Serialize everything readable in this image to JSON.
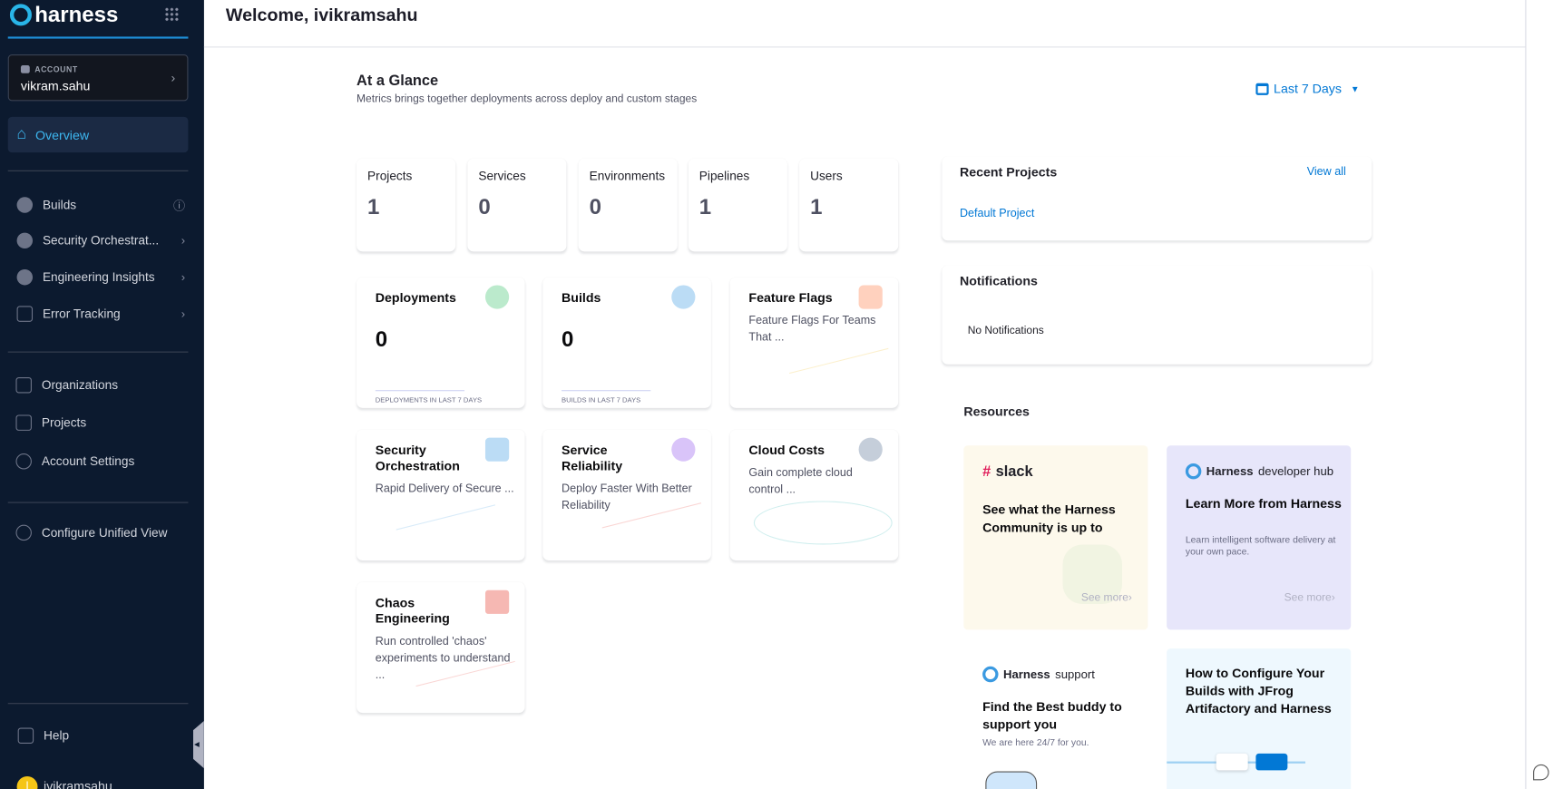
{
  "sidebar": {
    "logo": "harness",
    "account_label": "ACCOUNT",
    "account_name": "vikram.sahu",
    "overview": "Overview",
    "modules": [
      {
        "label": "Builds",
        "icon": "builds-icon",
        "trail": "info-icon"
      },
      {
        "label": "Security Orchestrat...",
        "icon": "shield-icon",
        "trail": "chevron-right-icon"
      },
      {
        "label": "Engineering Insights",
        "icon": "insights-icon",
        "trail": "chevron-right-icon"
      },
      {
        "label": "Error Tracking",
        "icon": "error-tracking-icon",
        "trail": "chevron-right-icon"
      }
    ],
    "admin": [
      {
        "label": "Organizations",
        "icon": "organizations-icon"
      },
      {
        "label": "Projects",
        "icon": "cube-icon"
      },
      {
        "label": "Account Settings",
        "icon": "gear-icon"
      }
    ],
    "configure": "Configure Unified View",
    "help": "Help",
    "user": "ivikramsahu",
    "user_initial": "I"
  },
  "header": {
    "title": "Welcome, ivikramsahu"
  },
  "glance": {
    "title": "At a Glance",
    "subtitle": "Metrics brings together deployments across deploy and custom stages",
    "range": "Last 7 Days"
  },
  "stats": [
    {
      "label": "Projects",
      "value": "1"
    },
    {
      "label": "Services",
      "value": "0"
    },
    {
      "label": "Environments",
      "value": "0"
    },
    {
      "label": "Pipelines",
      "value": "1"
    },
    {
      "label": "Users",
      "value": "1"
    }
  ],
  "modules": {
    "deployments": {
      "title": "Deployments",
      "value": "0",
      "footer": "DEPLOYMENTS IN LAST 7 DAYS"
    },
    "builds": {
      "title": "Builds",
      "value": "0",
      "footer": "BUILDS IN LAST 7 DAYS"
    },
    "ff": {
      "title": "Feature Flags",
      "desc": "Feature Flags For Teams That ..."
    },
    "sto": {
      "title": "Security Orchestration",
      "desc": "Rapid Delivery of Secure ..."
    },
    "srm": {
      "title": "Service Reliability",
      "desc": "Deploy Faster With Better Reliability"
    },
    "ccm": {
      "title": "Cloud Costs",
      "desc": "Gain complete cloud control ..."
    },
    "chaos": {
      "title": "Chaos Engineering",
      "desc": "Run controlled 'chaos' experiments to understand ..."
    }
  },
  "recent": {
    "title": "Recent Projects",
    "view_all": "View all",
    "projects": [
      "Default Project"
    ]
  },
  "notifications": {
    "title": "Notifications",
    "empty": "No Notifications"
  },
  "resources": {
    "title": "Resources",
    "slack": {
      "brand": "slack",
      "heading": "See what the Harness Community is up to",
      "more": "See more›"
    },
    "hub": {
      "brand_bold": "Harness",
      "brand_rest": "developer hub",
      "heading": "Learn More from Harness",
      "sub": "Learn intelligent software delivery at your own pace.",
      "more": "See more›"
    },
    "support": {
      "brand_bold": "Harness",
      "brand_rest": "support",
      "heading": "Find the Best buddy to support you",
      "sub": "We are here 24/7 for you."
    },
    "jfrog": {
      "heading": "How to Configure Your Builds with JFrog Artifactory and Harness"
    }
  }
}
